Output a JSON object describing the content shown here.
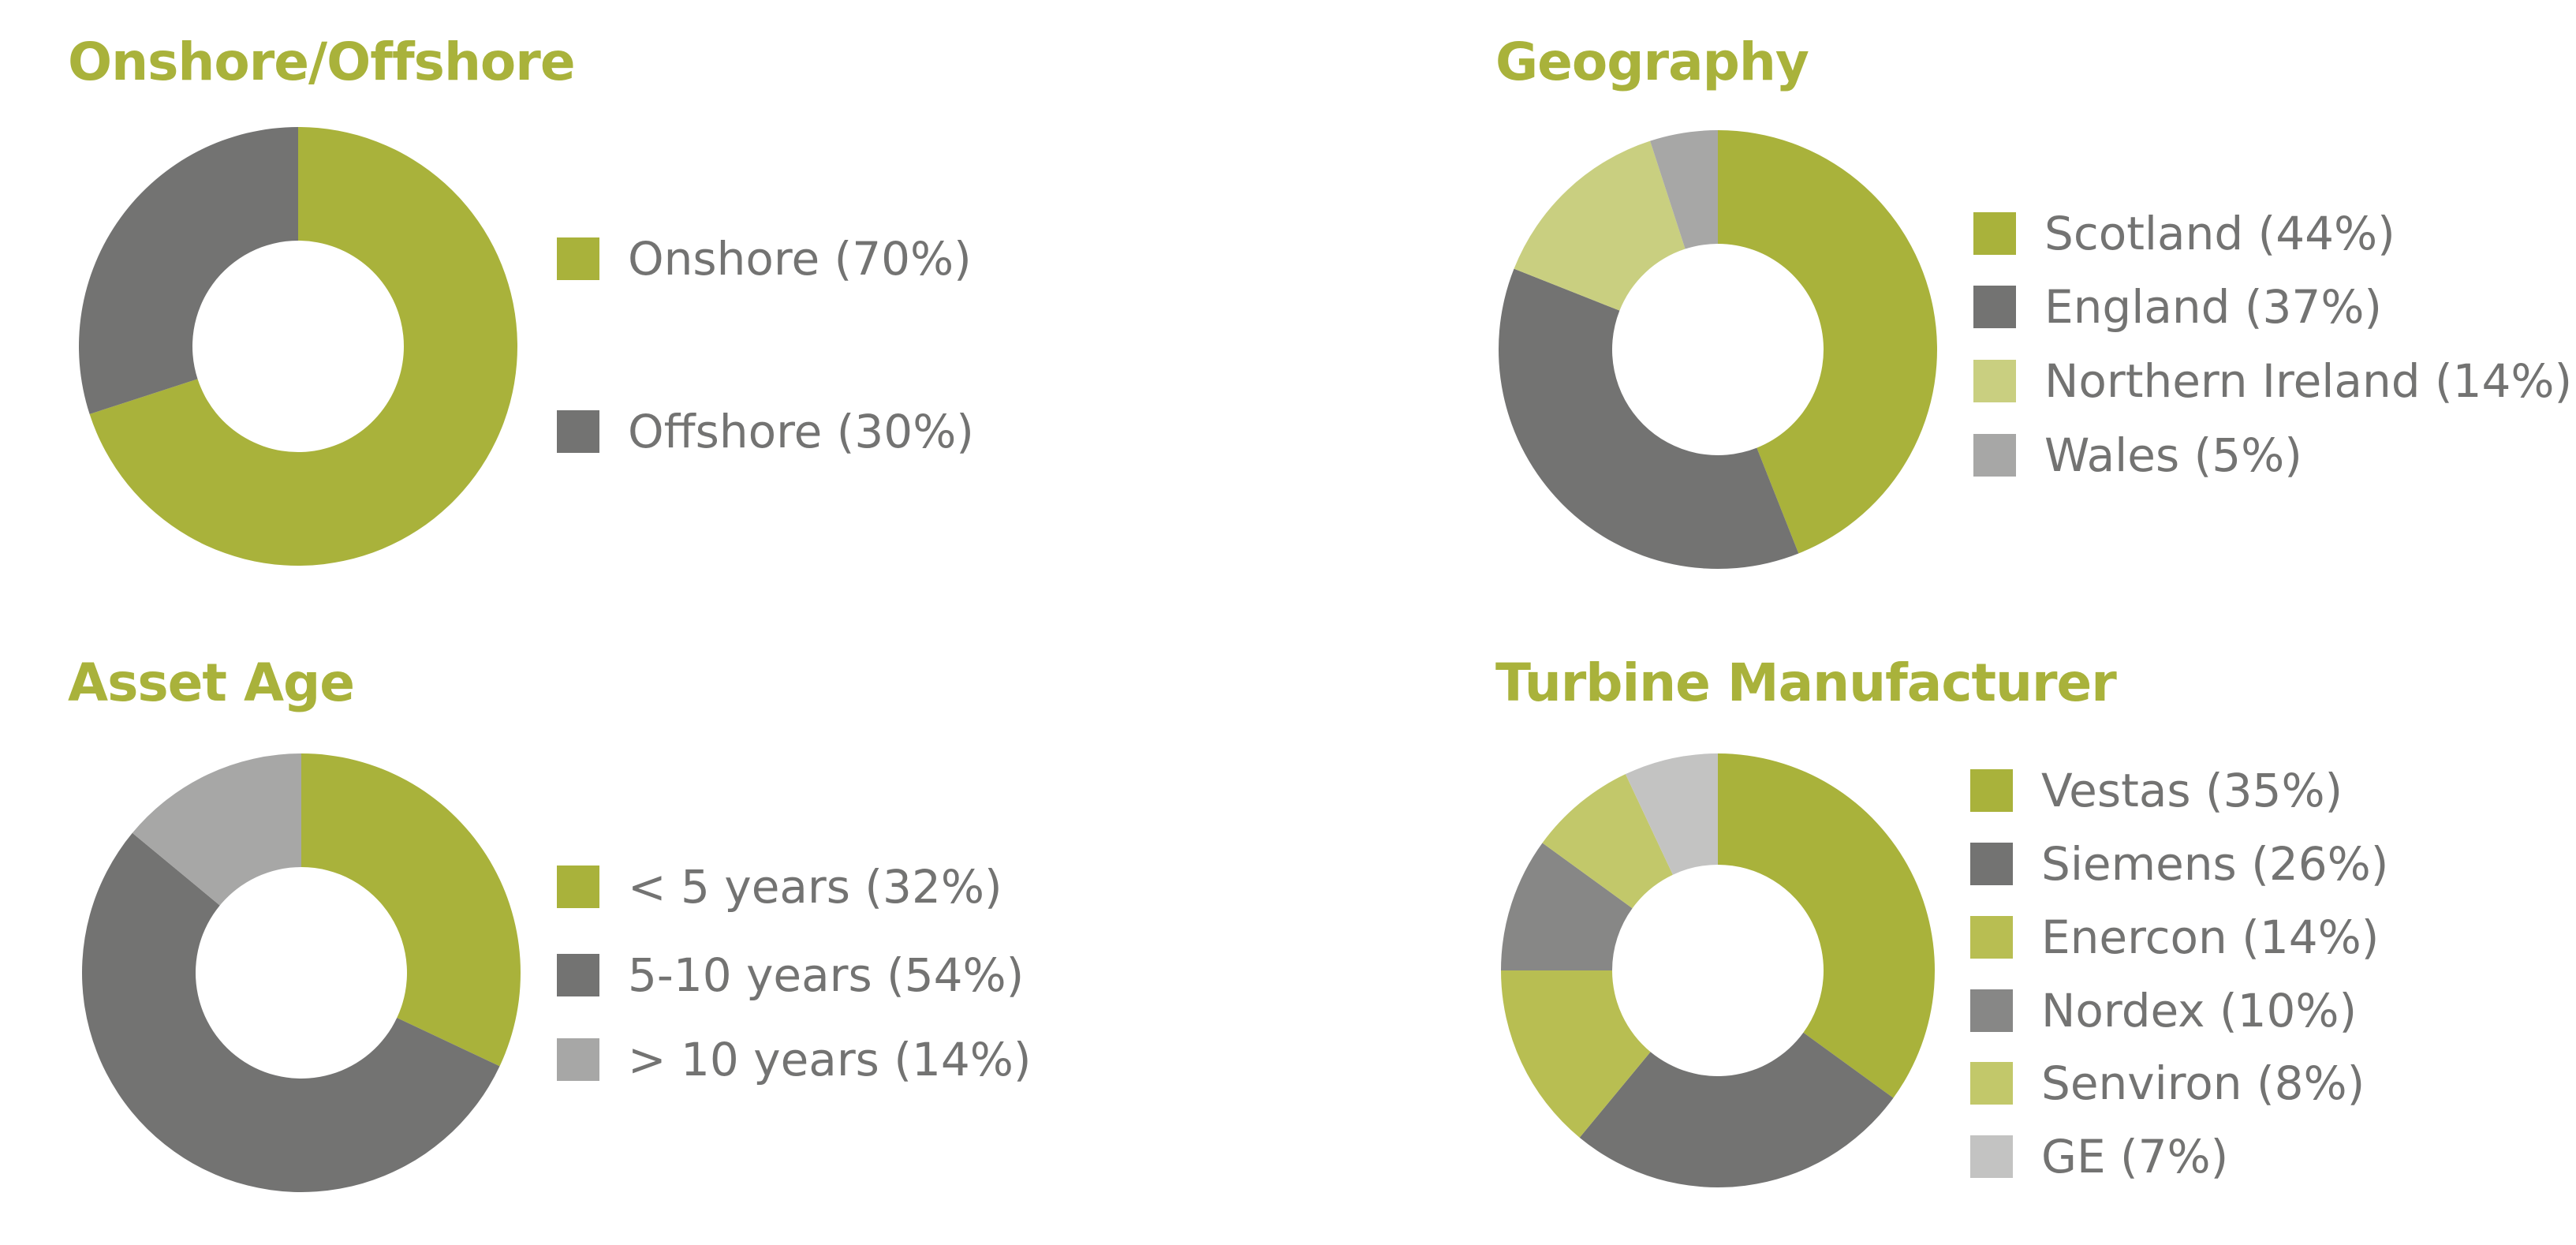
{
  "colors": {
    "title": "#a9b23b",
    "legend_text": "#737372"
  },
  "chart_data": [
    {
      "type": "pie",
      "title": "Onshore/Offshore",
      "slices": [
        {
          "label": "Onshore (70%)",
          "value": 70,
          "color": "#a9b23b"
        },
        {
          "label": "Offshore (30%)",
          "value": 30,
          "color": "#737372"
        }
      ]
    },
    {
      "type": "pie",
      "title": "Geography",
      "slices": [
        {
          "label": "Scotland (44%)",
          "value": 44,
          "color": "#a9b23b"
        },
        {
          "label": "England (37%)",
          "value": 37,
          "color": "#737372"
        },
        {
          "label": "Northern Ireland (14%)",
          "value": 14,
          "color": "#c9cf80"
        },
        {
          "label": "Wales (5%)",
          "value": 5,
          "color": "#a7a7a6"
        }
      ]
    },
    {
      "type": "pie",
      "title": "Asset Age",
      "slices": [
        {
          "label": "< 5 years (32%)",
          "value": 32,
          "color": "#a9b23b"
        },
        {
          "label": "5-10 years (54%)",
          "value": 54,
          "color": "#737372"
        },
        {
          "label": "> 10 years (14%)",
          "value": 14,
          "color": "#a7a7a6"
        }
      ]
    },
    {
      "type": "pie",
      "title": "Turbine Manufacturer",
      "slices": [
        {
          "label": "Vestas (35%)",
          "value": 35,
          "color": "#a9b23b"
        },
        {
          "label": "Siemens (26%)",
          "value": 26,
          "color": "#737372"
        },
        {
          "label": "Enercon (14%)",
          "value": 14,
          "color": "#b8be52"
        },
        {
          "label": "Nordex (10%)",
          "value": 10,
          "color": "#878786"
        },
        {
          "label": "Senviron (8%)",
          "value": 8,
          "color": "#c2c86a"
        },
        {
          "label": "GE (7%)",
          "value": 7,
          "color": "#c3c3c2"
        }
      ]
    }
  ]
}
